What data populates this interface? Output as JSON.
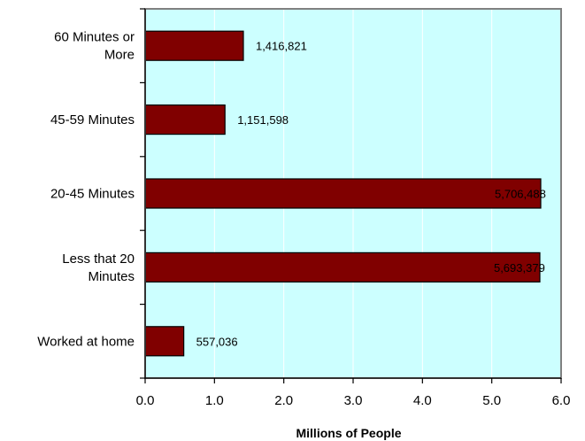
{
  "chart_data": {
    "type": "bar",
    "orientation": "horizontal",
    "categories": [
      [
        "60 Minutes or",
        "More"
      ],
      [
        "45-59 Minutes"
      ],
      [
        "20-45 Minutes"
      ],
      [
        "Less that 20",
        "Minutes"
      ],
      [
        "Worked at home"
      ]
    ],
    "values": [
      1.416821,
      1.151598,
      5.706488,
      5.693379,
      0.557036
    ],
    "data_labels": [
      "1,416,821",
      "1,151,598",
      "5,706,488",
      "5,693,379",
      "557,036"
    ],
    "xlabel": "Millions of People",
    "ylabel": "",
    "xlim": [
      0,
      6
    ],
    "xticks": [
      "0.0",
      "1.0",
      "2.0",
      "3.0",
      "4.0",
      "5.0",
      "6.0"
    ],
    "grid": "vertical",
    "legend": "none"
  },
  "colors": {
    "plot_background": "#ccffff",
    "bar_fill": "#800000",
    "bar_stroke": "#000000",
    "gridline": "#ffffff",
    "frame": "#808080"
  }
}
